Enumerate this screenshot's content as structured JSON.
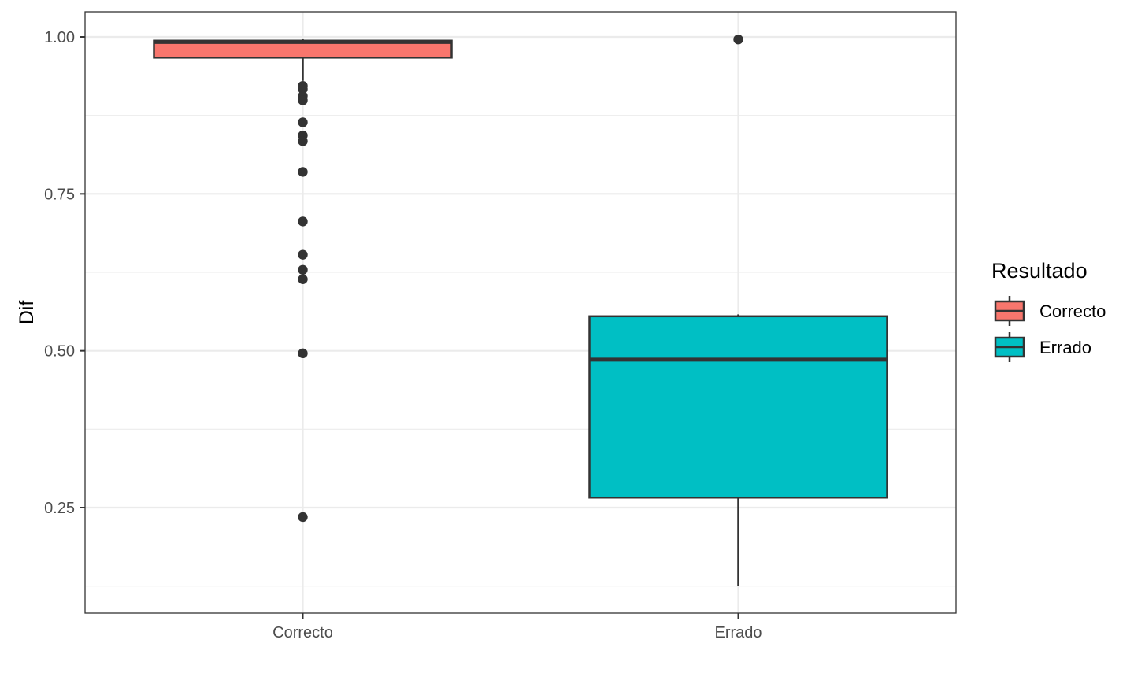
{
  "chart_data": {
    "type": "boxplot",
    "title": "",
    "xlabel": "",
    "ylabel": "Dif",
    "ylim": [
      0.08,
      1.04
    ],
    "y_ticks": [
      0.25,
      0.5,
      0.75,
      1.0
    ],
    "y_tick_labels": [
      "0.25",
      "0.50",
      "0.75",
      "1.00"
    ],
    "y_minor_ticks": [
      0.125,
      0.375,
      0.625,
      0.875
    ],
    "grid": true,
    "categories": [
      "Correcto",
      "Errado"
    ],
    "boxes": [
      {
        "category": "Correcto",
        "color": "#F8766D",
        "whisker_low": 0.93,
        "q1": 0.967,
        "median": 0.992,
        "q3": 0.994,
        "whisker_high": 0.997,
        "outliers": [
          0.922,
          0.917,
          0.906,
          0.899,
          0.864,
          0.843,
          0.834,
          0.785,
          0.706,
          0.653,
          0.629,
          0.614,
          0.496,
          0.235
        ]
      },
      {
        "category": "Errado",
        "color": "#00BFC4",
        "whisker_low": 0.125,
        "q1": 0.266,
        "median": 0.486,
        "q3": 0.555,
        "whisker_high": 0.558,
        "outliers": [
          0.996
        ]
      }
    ],
    "legend": {
      "title": "Resultado",
      "position": "right",
      "entries": [
        {
          "label": "Correcto",
          "color": "#F8766D"
        },
        {
          "label": "Errado",
          "color": "#00BFC4"
        }
      ]
    }
  }
}
